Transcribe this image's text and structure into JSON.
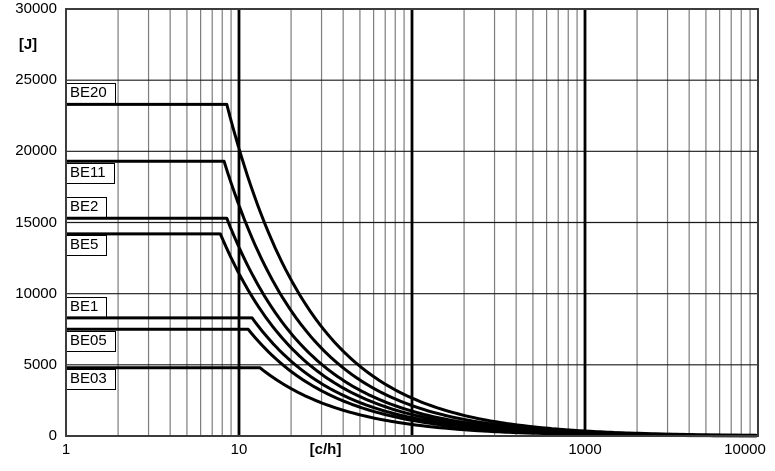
{
  "colors": {
    "background": "#ffffff",
    "curve": "#000000",
    "minor_grid": "#7d7d7d",
    "major_grid": "#000000",
    "h_grid": "#1a1a1a",
    "border": "#3c3c3c",
    "label_box_bg": "#ffffff",
    "label_box_border": "#000000"
  },
  "chart_data": {
    "type": "line",
    "title": "",
    "xlabel": "[c/h]",
    "ylabel": "[J]",
    "x_scale": "log",
    "xlim": [
      1,
      10000
    ],
    "ylim": [
      0,
      30000
    ],
    "xticks": [
      1,
      10,
      100,
      1000,
      10000
    ],
    "yticks": [
      0,
      5000,
      10000,
      15000,
      20000,
      25000,
      30000
    ],
    "grid": {
      "horizontal_major": true,
      "vertical_log_minor_2_to_9_per_decade": true,
      "vertical_major_thick_at": [
        10,
        100,
        1000
      ],
      "legend_position": "curve labels in white boxes at left axis"
    },
    "decay_exponent": 0.88,
    "model": "E(f) = Emax for f <= knee, else Emax*(knee/f)^0.88",
    "series": [
      {
        "name": "BE20",
        "max_energy_J": 23300,
        "knee_c_per_h": 8.5,
        "label_position": "above",
        "points": [
          [
            1,
            23300
          ],
          [
            8.5,
            23300
          ],
          [
            100,
            2660
          ],
          [
            1000,
            350
          ],
          [
            10000,
            46
          ]
        ]
      },
      {
        "name": "BE11",
        "max_energy_J": 19300,
        "knee_c_per_h": 8.2,
        "label_position": "below",
        "points": [
          [
            1,
            19300
          ],
          [
            8.2,
            19300
          ],
          [
            100,
            2140
          ],
          [
            1000,
            282
          ],
          [
            10000,
            37
          ]
        ]
      },
      {
        "name": "BE2",
        "max_energy_J": 15300,
        "knee_c_per_h": 8.5,
        "label_position": "above",
        "points": [
          [
            1,
            15300
          ],
          [
            8.5,
            15300
          ],
          [
            100,
            1750
          ],
          [
            1000,
            230
          ],
          [
            10000,
            30
          ]
        ]
      },
      {
        "name": "BE5",
        "max_energy_J": 14200,
        "knee_c_per_h": 7.8,
        "label_position": "below",
        "points": [
          [
            1,
            14200
          ],
          [
            7.8,
            14200
          ],
          [
            100,
            1500
          ],
          [
            1000,
            198
          ],
          [
            10000,
            26
          ]
        ]
      },
      {
        "name": "BE1",
        "max_energy_J": 8300,
        "knee_c_per_h": 11.9,
        "label_position": "above",
        "points": [
          [
            1,
            8300
          ],
          [
            11.9,
            8300
          ],
          [
            100,
            1280
          ],
          [
            1000,
            168
          ],
          [
            10000,
            22
          ]
        ]
      },
      {
        "name": "BE05",
        "max_energy_J": 7500,
        "knee_c_per_h": 11.3,
        "label_position": "below",
        "points": [
          [
            1,
            7500
          ],
          [
            11.3,
            7500
          ],
          [
            100,
            1100
          ],
          [
            1000,
            145
          ],
          [
            10000,
            19
          ]
        ]
      },
      {
        "name": "BE03",
        "max_energy_J": 4800,
        "knee_c_per_h": 13.2,
        "label_position": "below",
        "points": [
          [
            1,
            4800
          ],
          [
            13.2,
            4800
          ],
          [
            100,
            810
          ],
          [
            1000,
            107
          ],
          [
            10000,
            14
          ]
        ]
      }
    ]
  }
}
